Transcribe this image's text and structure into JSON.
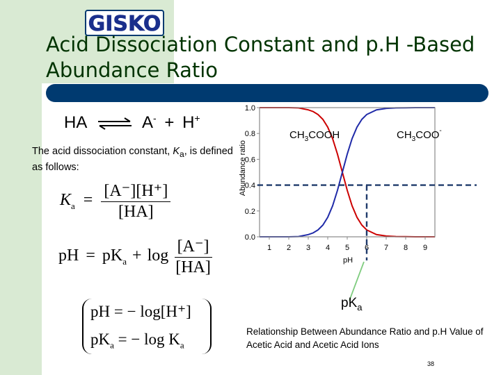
{
  "logo": {
    "text": "GISKO"
  },
  "title": "Acid Dissociation Constant and p.H -Based Abundance Ratio",
  "reaction": {
    "reactant": "HA",
    "anion": "A",
    "anion_charge": "-",
    "plus": "+",
    "cation": "H",
    "cation_charge": "+"
  },
  "description": {
    "text": "The acid dissociation constant, ",
    "symbol": "K",
    "subscript": "a",
    "rest": ", is defined as follows:"
  },
  "formulas": {
    "ka": {
      "lhs": "K",
      "lhs_sub": "a",
      "eq": "=",
      "numerator": "[A⁻][H⁺]",
      "denominator": "[HA]"
    },
    "ph": {
      "lhs": "pH",
      "eq": "=",
      "pka": "pK",
      "pka_sub": "a",
      "plus": "+",
      "log": "log",
      "numerator": "[A⁻]",
      "denominator": "[HA]"
    },
    "ph_def": {
      "lhs": "pH",
      "rhs": "= − log[H⁺]"
    },
    "pka_def": {
      "lhs": "pK",
      "lhs_sub": "a",
      "rhs": "= − log K",
      "rhs_sub": "a"
    }
  },
  "chart_data": {
    "type": "line",
    "xlabel": "pH",
    "ylabel": "Abundance ratio",
    "xlim": [
      0.5,
      9.5
    ],
    "ylim": [
      0,
      1.0
    ],
    "xticks": [
      1,
      2,
      3,
      4,
      5,
      6,
      7,
      8,
      9
    ],
    "yticks": [
      "0.0",
      "0.2",
      "0.4",
      "0.6",
      "0.8",
      "1.0"
    ],
    "grid": false,
    "series": [
      {
        "name": "CH3COOH",
        "color": "#cc0000",
        "x": [
          0.5,
          1,
          1.5,
          2,
          2.5,
          3,
          3.25,
          3.5,
          3.75,
          4,
          4.25,
          4.5,
          4.75,
          5,
          5.25,
          5.5,
          5.75,
          6,
          6.5,
          7,
          7.5,
          8,
          8.5,
          9,
          9.5
        ],
        "y": [
          1,
          1,
          1,
          1,
          0.998,
          0.983,
          0.97,
          0.947,
          0.909,
          0.849,
          0.76,
          0.64,
          0.5,
          0.36,
          0.24,
          0.151,
          0.091,
          0.053,
          0.017,
          0.006,
          0.002,
          0.001,
          0,
          0,
          0
        ]
      },
      {
        "name": "CH3COO-",
        "color": "#1f2aa8",
        "x": [
          0.5,
          1,
          1.5,
          2,
          2.5,
          3,
          3.25,
          3.5,
          3.75,
          4,
          4.25,
          4.5,
          4.75,
          5,
          5.25,
          5.5,
          5.75,
          6,
          6.5,
          7,
          7.5,
          8,
          8.5,
          9,
          9.5
        ],
        "y": [
          0,
          0,
          0,
          0,
          0.002,
          0.017,
          0.03,
          0.053,
          0.091,
          0.151,
          0.24,
          0.36,
          0.5,
          0.64,
          0.76,
          0.849,
          0.909,
          0.947,
          0.983,
          0.994,
          0.998,
          0.999,
          1,
          1,
          1
        ]
      }
    ],
    "series_labels": [
      {
        "base": "CH",
        "sub": "3",
        "rest": "COOH",
        "sup": ""
      },
      {
        "base": "CH",
        "sub": "3",
        "rest": "COO",
        "sup": "-"
      }
    ],
    "reference_lines": {
      "y_level": 0.4,
      "x_value": 6.0,
      "color": "#1f3a6b"
    },
    "annotation": {
      "text": "pK",
      "subscript": "a",
      "color": "#7fcc7f"
    }
  },
  "caption": "Relationship Between Abundance Ratio and p.H Value of Acetic Acid and Acetic Acid Ions",
  "page_number": "38"
}
